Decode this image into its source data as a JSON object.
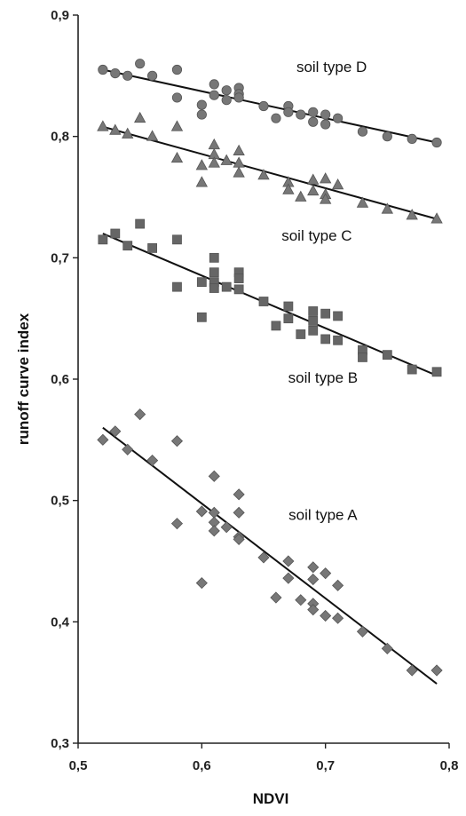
{
  "chart_data": {
    "type": "scatter",
    "xlabel": "NDVI",
    "ylabel": "runoff curve index",
    "xlim": [
      0.5,
      0.8
    ],
    "ylim": [
      0.3,
      0.9
    ],
    "grid": false,
    "x_ticks": [
      "0,5",
      "0,6",
      "0,7",
      "0,8"
    ],
    "y_ticks": [
      "0,3",
      "0,4",
      "0,5",
      "0,6",
      "0,7",
      "0,8",
      "0,9"
    ],
    "annotations": [
      {
        "text": "soil type D",
        "x": 0.705,
        "y": 0.853
      },
      {
        "text": "soil type C",
        "x": 0.693,
        "y": 0.714
      },
      {
        "text": "soil type B",
        "x": 0.698,
        "y": 0.597
      },
      {
        "text": "soil type A",
        "x": 0.698,
        "y": 0.484
      }
    ],
    "series": [
      {
        "marker": "circle",
        "color": "#777777",
        "trend": [
          [
            0.52,
            0.855
          ],
          [
            0.79,
            0.795
          ]
        ],
        "points": [
          [
            0.52,
            0.855
          ],
          [
            0.53,
            0.852
          ],
          [
            0.54,
            0.85
          ],
          [
            0.55,
            0.86
          ],
          [
            0.56,
            0.85
          ],
          [
            0.58,
            0.855
          ],
          [
            0.58,
            0.832
          ],
          [
            0.6,
            0.826
          ],
          [
            0.6,
            0.818
          ],
          [
            0.61,
            0.843
          ],
          [
            0.61,
            0.834
          ],
          [
            0.62,
            0.83
          ],
          [
            0.62,
            0.838
          ],
          [
            0.63,
            0.84
          ],
          [
            0.63,
            0.835
          ],
          [
            0.63,
            0.832
          ],
          [
            0.65,
            0.825
          ],
          [
            0.66,
            0.815
          ],
          [
            0.67,
            0.825
          ],
          [
            0.67,
            0.82
          ],
          [
            0.68,
            0.818
          ],
          [
            0.69,
            0.82
          ],
          [
            0.69,
            0.812
          ],
          [
            0.7,
            0.818
          ],
          [
            0.7,
            0.81
          ],
          [
            0.71,
            0.815
          ],
          [
            0.73,
            0.804
          ],
          [
            0.75,
            0.8
          ],
          [
            0.77,
            0.798
          ],
          [
            0.79,
            0.795
          ]
        ]
      },
      {
        "marker": "triangle",
        "color": "#777777",
        "trend": [
          [
            0.52,
            0.808
          ],
          [
            0.79,
            0.732
          ]
        ],
        "points": [
          [
            0.52,
            0.808
          ],
          [
            0.53,
            0.805
          ],
          [
            0.54,
            0.802
          ],
          [
            0.55,
            0.815
          ],
          [
            0.56,
            0.8
          ],
          [
            0.58,
            0.808
          ],
          [
            0.58,
            0.782
          ],
          [
            0.6,
            0.776
          ],
          [
            0.6,
            0.762
          ],
          [
            0.61,
            0.793
          ],
          [
            0.61,
            0.785
          ],
          [
            0.61,
            0.778
          ],
          [
            0.62,
            0.78
          ],
          [
            0.63,
            0.788
          ],
          [
            0.63,
            0.778
          ],
          [
            0.63,
            0.77
          ],
          [
            0.65,
            0.768
          ],
          [
            0.67,
            0.762
          ],
          [
            0.67,
            0.756
          ],
          [
            0.68,
            0.75
          ],
          [
            0.69,
            0.764
          ],
          [
            0.69,
            0.755
          ],
          [
            0.7,
            0.765
          ],
          [
            0.7,
            0.752
          ],
          [
            0.7,
            0.748
          ],
          [
            0.71,
            0.76
          ],
          [
            0.73,
            0.745
          ],
          [
            0.75,
            0.74
          ],
          [
            0.77,
            0.735
          ],
          [
            0.79,
            0.732
          ]
        ]
      },
      {
        "marker": "square",
        "color": "#666666",
        "trend": [
          [
            0.52,
            0.72
          ],
          [
            0.79,
            0.603
          ]
        ],
        "points": [
          [
            0.52,
            0.715
          ],
          [
            0.53,
            0.72
          ],
          [
            0.54,
            0.71
          ],
          [
            0.55,
            0.728
          ],
          [
            0.56,
            0.708
          ],
          [
            0.58,
            0.715
          ],
          [
            0.58,
            0.676
          ],
          [
            0.6,
            0.68
          ],
          [
            0.6,
            0.651
          ],
          [
            0.61,
            0.7
          ],
          [
            0.61,
            0.688
          ],
          [
            0.61,
            0.68
          ],
          [
            0.61,
            0.675
          ],
          [
            0.62,
            0.676
          ],
          [
            0.63,
            0.688
          ],
          [
            0.63,
            0.683
          ],
          [
            0.63,
            0.674
          ],
          [
            0.65,
            0.664
          ],
          [
            0.66,
            0.644
          ],
          [
            0.67,
            0.66
          ],
          [
            0.67,
            0.65
          ],
          [
            0.68,
            0.637
          ],
          [
            0.69,
            0.656
          ],
          [
            0.69,
            0.648
          ],
          [
            0.69,
            0.64
          ],
          [
            0.7,
            0.654
          ],
          [
            0.7,
            0.633
          ],
          [
            0.71,
            0.652
          ],
          [
            0.71,
            0.632
          ],
          [
            0.73,
            0.624
          ],
          [
            0.73,
            0.618
          ],
          [
            0.75,
            0.62
          ],
          [
            0.77,
            0.608
          ],
          [
            0.79,
            0.606
          ]
        ]
      },
      {
        "marker": "diamond",
        "color": "#777777",
        "trend": [
          [
            0.52,
            0.56
          ],
          [
            0.79,
            0.349
          ]
        ],
        "points": [
          [
            0.52,
            0.55
          ],
          [
            0.53,
            0.557
          ],
          [
            0.54,
            0.542
          ],
          [
            0.55,
            0.571
          ],
          [
            0.56,
            0.533
          ],
          [
            0.58,
            0.549
          ],
          [
            0.58,
            0.481
          ],
          [
            0.6,
            0.491
          ],
          [
            0.6,
            0.432
          ],
          [
            0.61,
            0.52
          ],
          [
            0.61,
            0.49
          ],
          [
            0.61,
            0.482
          ],
          [
            0.61,
            0.475
          ],
          [
            0.62,
            0.478
          ],
          [
            0.63,
            0.505
          ],
          [
            0.63,
            0.49
          ],
          [
            0.63,
            0.47
          ],
          [
            0.63,
            0.468
          ],
          [
            0.65,
            0.453
          ],
          [
            0.66,
            0.42
          ],
          [
            0.67,
            0.45
          ],
          [
            0.67,
            0.436
          ],
          [
            0.68,
            0.418
          ],
          [
            0.69,
            0.445
          ],
          [
            0.69,
            0.435
          ],
          [
            0.69,
            0.415
          ],
          [
            0.69,
            0.41
          ],
          [
            0.7,
            0.44
          ],
          [
            0.7,
            0.405
          ],
          [
            0.71,
            0.43
          ],
          [
            0.71,
            0.403
          ],
          [
            0.73,
            0.392
          ],
          [
            0.75,
            0.378
          ],
          [
            0.77,
            0.36
          ],
          [
            0.79,
            0.36
          ]
        ]
      }
    ]
  }
}
